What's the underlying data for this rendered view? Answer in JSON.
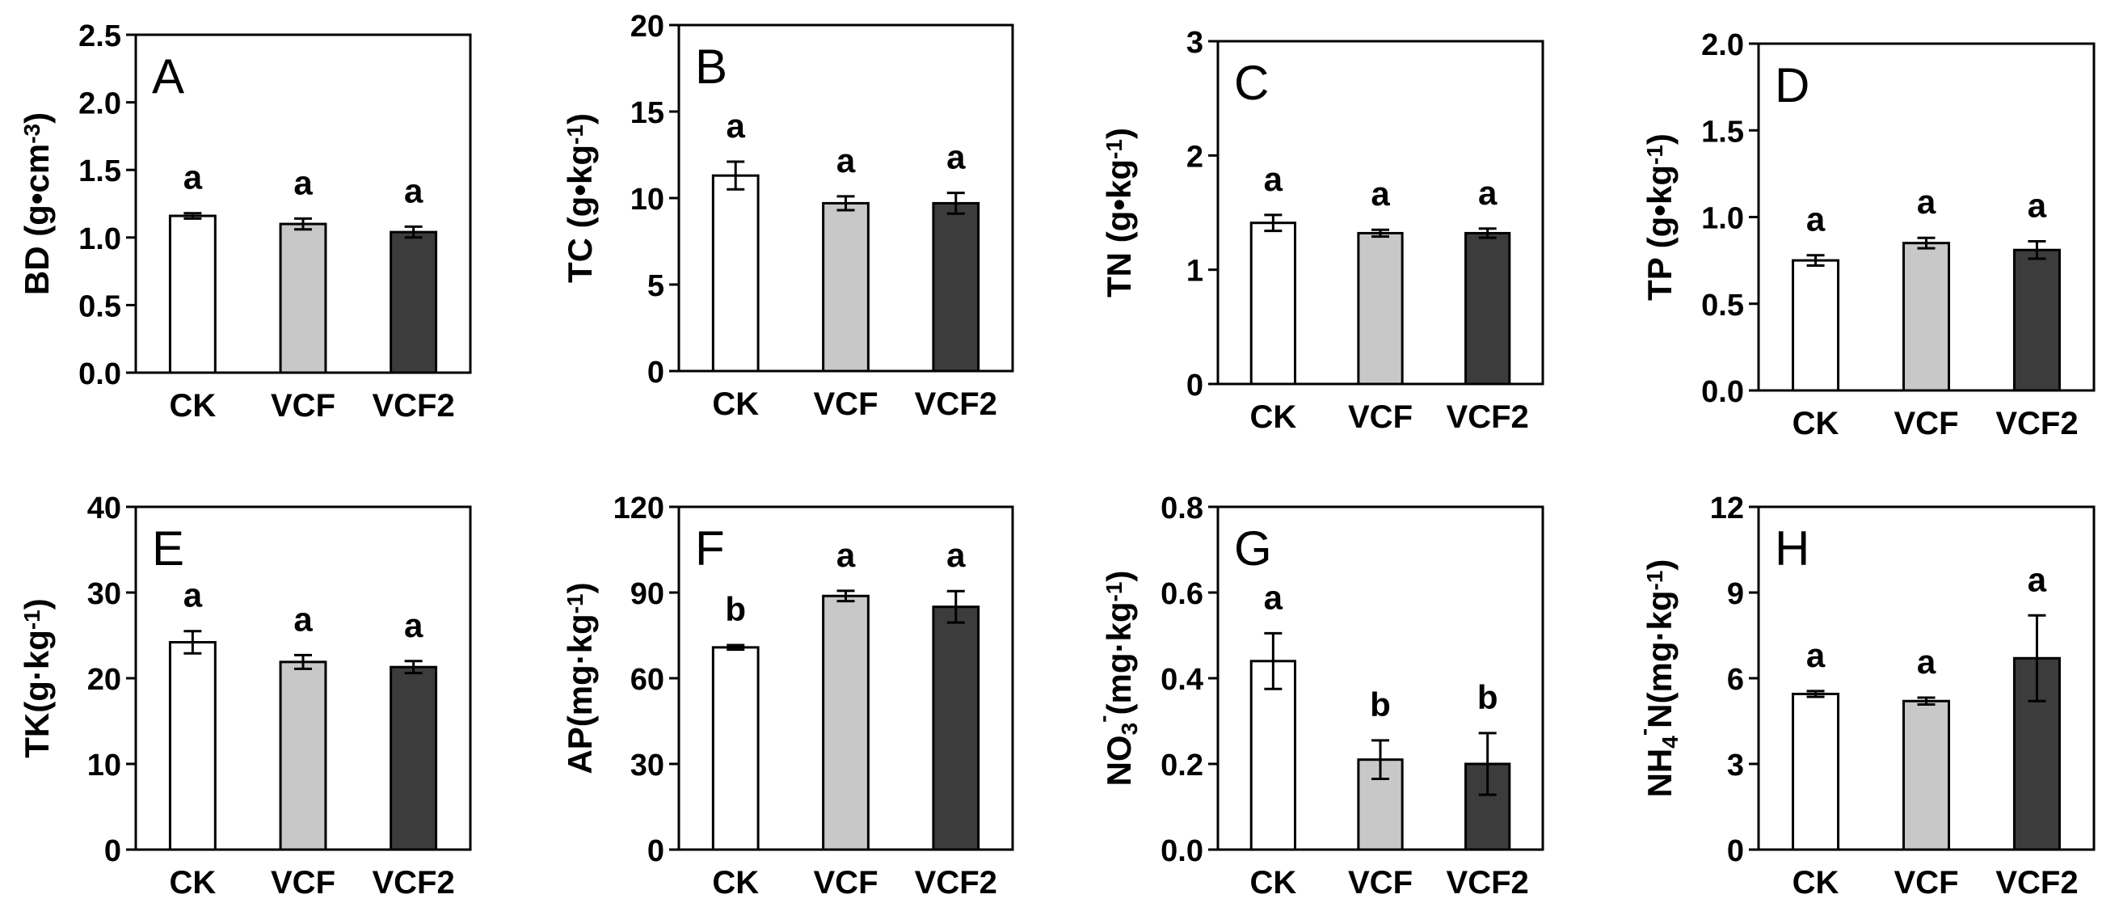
{
  "figure": {
    "bar_colors": {
      "CK": "#ffffff",
      "VCF": "#c8c8c8",
      "VCF2": "#3c3c3c"
    }
  },
  "chart_data": [
    {
      "panel": "A",
      "type": "bar",
      "categories": [
        "CK",
        "VCF",
        "VCF2"
      ],
      "values": [
        1.16,
        1.1,
        1.04
      ],
      "errors": [
        0.02,
        0.04,
        0.04
      ],
      "significance": [
        "a",
        "a",
        "a"
      ],
      "ylabel_main": "BD (g•cm",
      "ylabel_sup": "-3",
      "ylabel_end": ")",
      "ylim": [
        0.0,
        2.5
      ],
      "yticks": [
        "0.0",
        "0.5",
        "1.0",
        "1.5",
        "2.0",
        "2.5"
      ]
    },
    {
      "panel": "B",
      "type": "bar",
      "categories": [
        "CK",
        "VCF",
        "VCF2"
      ],
      "values": [
        11.3,
        9.7,
        9.7
      ],
      "errors": [
        0.8,
        0.4,
        0.6
      ],
      "significance": [
        "a",
        "a",
        "a"
      ],
      "ylabel_main": "TC (g•kg",
      "ylabel_sup": "-1",
      "ylabel_end": ")",
      "ylim": [
        0,
        20
      ],
      "yticks": [
        "0",
        "5",
        "10",
        "15",
        "20"
      ]
    },
    {
      "panel": "C",
      "type": "bar",
      "categories": [
        "CK",
        "VCF",
        "VCF2"
      ],
      "values": [
        1.41,
        1.32,
        1.32
      ],
      "errors": [
        0.07,
        0.03,
        0.04
      ],
      "significance": [
        "a",
        "a",
        "a"
      ],
      "ylabel_main": "TN (g•kg",
      "ylabel_sup": "-1",
      "ylabel_end": ")",
      "ylim": [
        0,
        3
      ],
      "yticks": [
        "0",
        "1",
        "2",
        "3"
      ]
    },
    {
      "panel": "D",
      "type": "bar",
      "categories": [
        "CK",
        "VCF",
        "VCF2"
      ],
      "values": [
        0.75,
        0.85,
        0.81
      ],
      "errors": [
        0.03,
        0.03,
        0.05
      ],
      "significance": [
        "a",
        "a",
        "a"
      ],
      "ylabel_main": "TP (g•kg",
      "ylabel_sup": "-1",
      "ylabel_end": ")",
      "ylim": [
        0.0,
        2.0
      ],
      "yticks": [
        "0.0",
        "0.5",
        "1.0",
        "1.5",
        "2.0"
      ]
    },
    {
      "panel": "E",
      "type": "bar",
      "categories": [
        "CK",
        "VCF",
        "VCF2"
      ],
      "values": [
        24.2,
        21.9,
        21.3
      ],
      "errors": [
        1.3,
        0.8,
        0.7
      ],
      "significance": [
        "a",
        "a",
        "a"
      ],
      "ylabel_main": "TK(g·kg",
      "ylabel_sup": "-1",
      "ylabel_end": ")",
      "ylim": [
        0,
        40
      ],
      "yticks": [
        "0",
        "10",
        "20",
        "30",
        "40"
      ]
    },
    {
      "panel": "F",
      "type": "bar",
      "categories": [
        "CK",
        "VCF",
        "VCF2"
      ],
      "values": [
        70.8,
        88.8,
        85.0
      ],
      "errors": [
        0.8,
        1.8,
        5.5
      ],
      "significance": [
        "b",
        "a",
        "a"
      ],
      "ylabel_main": "AP(mg·kg",
      "ylabel_sup": "-1",
      "ylabel_end": ")",
      "ylim": [
        0,
        120
      ],
      "yticks": [
        "0",
        "30",
        "60",
        "90",
        "120"
      ]
    },
    {
      "panel": "G",
      "type": "bar",
      "categories": [
        "CK",
        "VCF",
        "VCF2"
      ],
      "values": [
        0.44,
        0.21,
        0.2
      ],
      "errors": [
        0.065,
        0.045,
        0.072
      ],
      "significance": [
        "a",
        "b",
        "b"
      ],
      "ylabel_pre": "NO",
      "ylabel_sub": "3",
      "ylabel_sup": "-",
      "ylabel_main": "(mg·kg",
      "ylabel_sup2": "-1",
      "ylabel_end": ")",
      "ylim": [
        0.0,
        0.8
      ],
      "yticks": [
        "0.0",
        "0.2",
        "0.4",
        "0.6",
        "0.8"
      ]
    },
    {
      "panel": "H",
      "type": "bar",
      "categories": [
        "CK",
        "VCF",
        "VCF2"
      ],
      "values": [
        5.45,
        5.2,
        6.7
      ],
      "errors": [
        0.1,
        0.12,
        1.5
      ],
      "significance": [
        "a",
        "a",
        "a"
      ],
      "ylabel_pre": "NH",
      "ylabel_sub": "4",
      "ylabel_sup": "-",
      "ylabel_main": "N(mg·kg",
      "ylabel_sup2": "-1",
      "ylabel_end": ")",
      "ylim": [
        0,
        12
      ],
      "yticks": [
        "0",
        "3",
        "6",
        "9",
        "12"
      ]
    }
  ]
}
